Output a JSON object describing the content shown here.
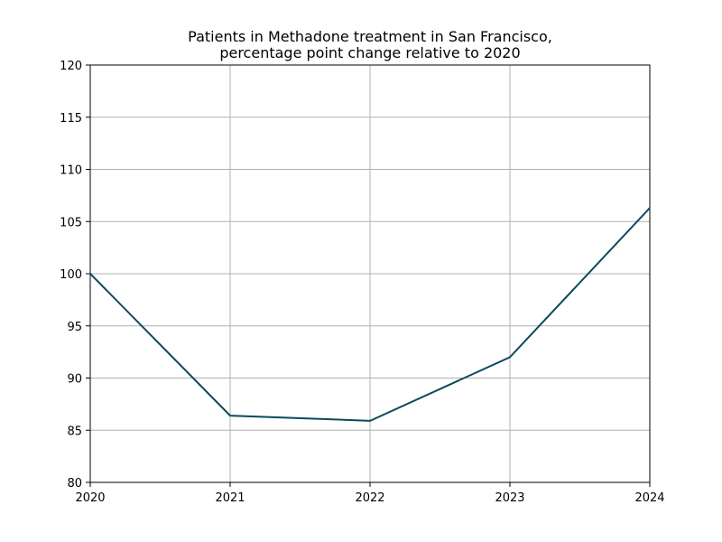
{
  "chart_data": {
    "type": "line",
    "title": "Patients in Methadone treatment in San Francisco,",
    "subtitle": "percentage point change relative to 2020",
    "xlabel": "",
    "ylabel": "",
    "x": [
      2020,
      2021,
      2022,
      2023,
      2024
    ],
    "series": [
      {
        "values": [
          100,
          86.4,
          85.9,
          92.0,
          106.3
        ]
      }
    ],
    "xlim": [
      2020,
      2024
    ],
    "ylim": [
      80,
      120
    ],
    "xticks": [
      2020,
      2021,
      2022,
      2023,
      2024
    ],
    "yticks": [
      80,
      85,
      90,
      95,
      100,
      105,
      110,
      115,
      120
    ],
    "grid": true,
    "line_color": "#0b4a5e"
  }
}
